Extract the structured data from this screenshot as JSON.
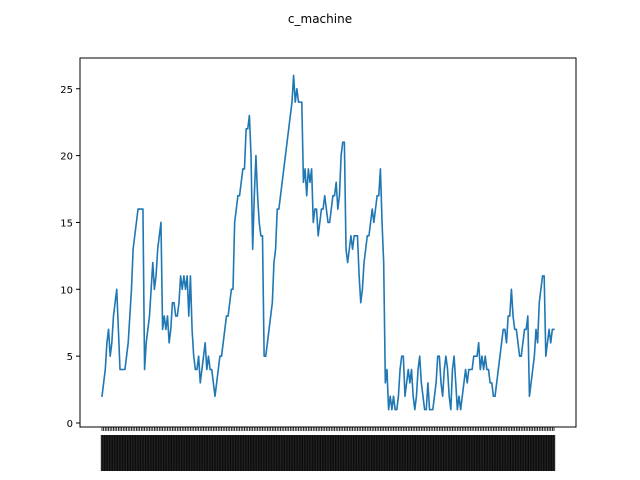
{
  "chart_data": {
    "type": "line",
    "title": "c_machine",
    "xlabel": "",
    "ylabel": "",
    "ylim": [
      -0.3,
      27.3
    ],
    "yticks": [
      0,
      5,
      10,
      15,
      20,
      25
    ],
    "grid": false,
    "legend": "none",
    "x_ticks_unreadable": true,
    "series": [
      {
        "color": "#1f77b4",
        "values": [
          2,
          3,
          4,
          6,
          7,
          5,
          6,
          8,
          9,
          10,
          7,
          4,
          4,
          4,
          4,
          5,
          6,
          8,
          10,
          13,
          14,
          15,
          16,
          16,
          16,
          16,
          4,
          6,
          7,
          8,
          10,
          12,
          10,
          11,
          13,
          14,
          15,
          7,
          8,
          7,
          8,
          6,
          7,
          9,
          9,
          8,
          8,
          9,
          11,
          10,
          11,
          10,
          11,
          8,
          11,
          7,
          5,
          4,
          4,
          5,
          3,
          4,
          5,
          6,
          4,
          5,
          4,
          4,
          3,
          2,
          3,
          4,
          5,
          5,
          6,
          7,
          8,
          8,
          9,
          10,
          10,
          15,
          16,
          17,
          17,
          18,
          19,
          19,
          22,
          22,
          23,
          20,
          13,
          17,
          20,
          17,
          15,
          14,
          14,
          5,
          5,
          6,
          7,
          8,
          9,
          12,
          13,
          16,
          16,
          17,
          18,
          19,
          20,
          21,
          22,
          23,
          24,
          26,
          24,
          25,
          24,
          24,
          24,
          18,
          19,
          17,
          19,
          18,
          19,
          15,
          16,
          16,
          14,
          15,
          16,
          16,
          17,
          16,
          15,
          15,
          16,
          17,
          17,
          18,
          16,
          17,
          20,
          21,
          21,
          13,
          12,
          13,
          14,
          13,
          14,
          14,
          14,
          11,
          9,
          10,
          12,
          13,
          14,
          14,
          15,
          16,
          15,
          16,
          17,
          17,
          19,
          15,
          12,
          3,
          4,
          1,
          2,
          1,
          2,
          1,
          1,
          2,
          4,
          5,
          5,
          2,
          3,
          4,
          3,
          4,
          2,
          1,
          2,
          4,
          5,
          3,
          2,
          1,
          1,
          3,
          1,
          1,
          1,
          2,
          3,
          5,
          5,
          3,
          2,
          4,
          5,
          4,
          2,
          1,
          4,
          5,
          3,
          1,
          2,
          1,
          2,
          3,
          4,
          3,
          4,
          4,
          4,
          5,
          5,
          5,
          6,
          4,
          5,
          4,
          5,
          4,
          4,
          3,
          3,
          2,
          2,
          3,
          4,
          5,
          6,
          7,
          7,
          6,
          8,
          8,
          10,
          8,
          7,
          7,
          6,
          5,
          5,
          6,
          7,
          7,
          8,
          2,
          3,
          4,
          5,
          7,
          6,
          9,
          10,
          11,
          11,
          5,
          6,
          7,
          6,
          7,
          7
        ]
      }
    ]
  }
}
